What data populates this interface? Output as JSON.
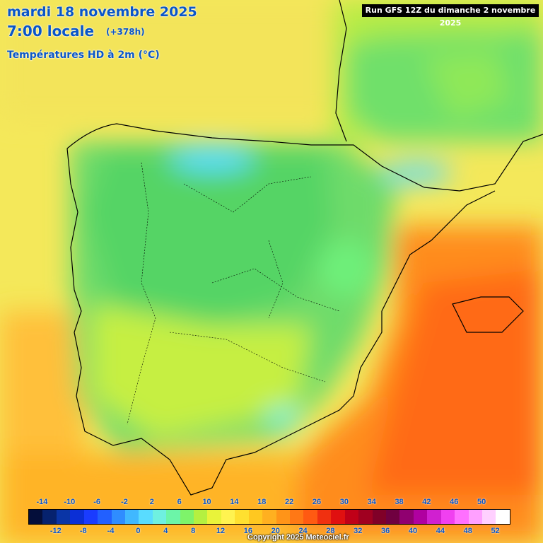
{
  "header": {
    "date_line": "mardi 18 novembre 2025",
    "time_line": "7:00 locale",
    "lead_time": "(+378h)",
    "field_name": "Températures HD à 2m (°C)",
    "run_info": "Run GFS 12Z du dimanche 2 novembre 2025"
  },
  "legend": {
    "top_labels": [
      "-14",
      "-10",
      "-6",
      "-2",
      "2",
      "6",
      "10",
      "14",
      "18",
      "22",
      "26",
      "30",
      "34",
      "38",
      "42",
      "46",
      "50"
    ],
    "bottom_labels": [
      "-12",
      "-8",
      "-4",
      "0",
      "4",
      "8",
      "12",
      "16",
      "20",
      "24",
      "28",
      "32",
      "36",
      "40",
      "44",
      "48",
      "52"
    ],
    "colors": [
      "#040e3a",
      "#06226e",
      "#0a35a6",
      "#0b2fd6",
      "#1a3cff",
      "#2260ff",
      "#2f8dff",
      "#40b8ff",
      "#59dcff",
      "#6ff0e0",
      "#6cf5a8",
      "#7ef36a",
      "#b5f040",
      "#e9f33a",
      "#fff350",
      "#ffe030",
      "#ffc820",
      "#ffb020",
      "#ff9418",
      "#ff7815",
      "#ff5a12",
      "#f03010",
      "#e01010",
      "#c00018",
      "#a00020",
      "#800028",
      "#700040",
      "#900070",
      "#b000a0",
      "#d020d0",
      "#f040f0",
      "#ff70ff",
      "#ffa0ff",
      "#ffd0ff",
      "#ffffff"
    ]
  },
  "footer": {
    "copyright": "Copyright 2025 Meteociel.fr"
  }
}
